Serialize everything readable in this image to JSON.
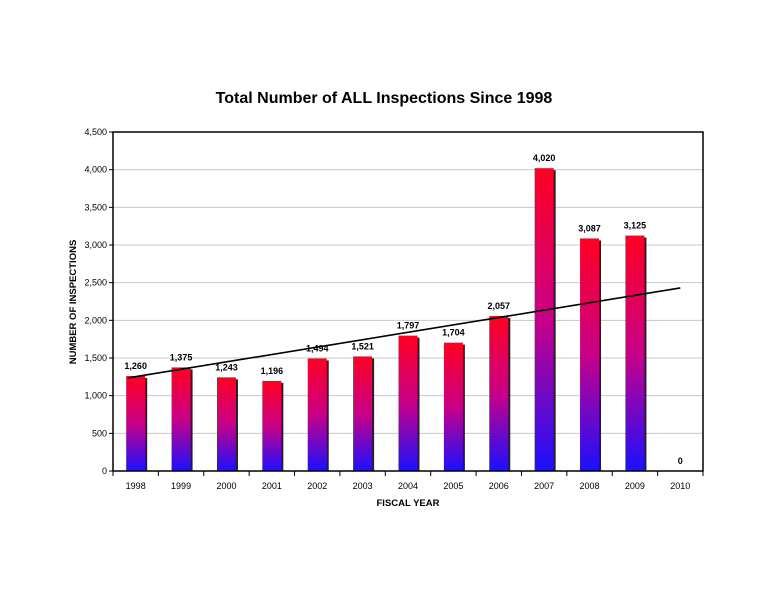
{
  "chart_data": {
    "type": "bar",
    "title": "Total Number of ALL Inspections Since 1998",
    "xlabel": "FISCAL YEAR",
    "ylabel": "NUMBER OF INSPECTIONS",
    "categories": [
      "1998",
      "1999",
      "2000",
      "2001",
      "2002",
      "2003",
      "2004",
      "2005",
      "2006",
      "2007",
      "2008",
      "2009",
      "2010"
    ],
    "values": [
      1260,
      1375,
      1243,
      1196,
      1494,
      1521,
      1797,
      1704,
      2057,
      4020,
      3087,
      3125,
      0
    ],
    "data_labels": [
      "1,260",
      "1,375",
      "1,243",
      "1,196",
      "1,494",
      "1,521",
      "1,797",
      "1,704",
      "2,057",
      "4,020",
      "3,087",
      "3,125",
      "0"
    ],
    "ylim": [
      0,
      4500
    ],
    "yticks": [
      0,
      500,
      1000,
      1500,
      2000,
      2500,
      3000,
      3500,
      4000,
      4500
    ],
    "ytick_labels": [
      "0",
      "500",
      "1,000",
      "1,500",
      "2,000",
      "2,500",
      "3,000",
      "3,500",
      "4,000",
      "4,500"
    ],
    "grid": true,
    "trendline": {
      "type": "linear",
      "start": 1235,
      "end": 2430
    },
    "colors": {
      "bar_top": "#ff0022",
      "bar_mid": "#c80088",
      "bar_bottom": "#1a10ff",
      "grid": "#c8c8c8",
      "trendline": "#000000"
    }
  }
}
